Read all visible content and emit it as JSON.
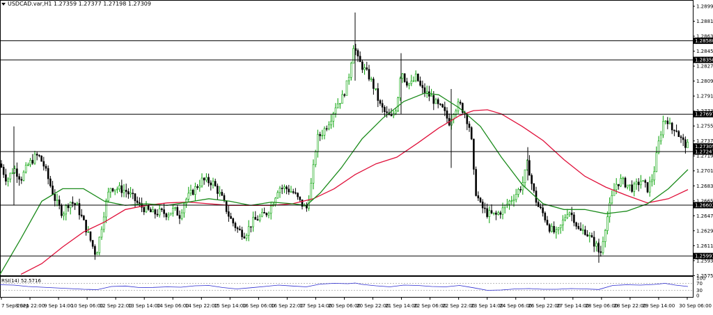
{
  "header": {
    "symbol": "USDCAD.var,H1",
    "open": "1.27359",
    "high": "1.27377",
    "low": "1.27198",
    "close": "1.27309"
  },
  "rsi": {
    "label": "RSI(14) 52.5716",
    "levels": [
      "100",
      "70",
      "30",
      "0"
    ]
  },
  "colors": {
    "up_candle": "#00a000",
    "down_candle": "#000000",
    "ma_fast": "#1a8a1a",
    "ma_slow": "#e0103a",
    "rsi_line": "#2a2ad0",
    "price_tag": "#000000"
  },
  "chart_data": {
    "type": "candlestick",
    "symbol": "USDCAD.var",
    "timeframe": "H1",
    "ylim": [
      1.2575,
      1.2902
    ],
    "price_ticks": [
      "1.28995",
      "1.28815",
      "1.28635",
      "1.28455",
      "1.28275",
      "1.28095",
      "1.27915",
      "1.27735",
      "1.27555",
      "1.27375",
      "1.27195",
      "1.27015",
      "1.26835",
      "1.26655",
      "1.26475",
      "1.26295",
      "1.26115",
      "1.25935",
      "1.25755"
    ],
    "horizontal_levels": [
      "1.28580",
      "1.28350",
      "1.27697",
      "1.27247",
      "1.26603",
      "1.25991"
    ],
    "current_price": "1.27309",
    "time_labels": [
      "7 Sep 2021",
      "8 Sep 22:00",
      "9 Sep 14:00",
      "10 Sep 06:00",
      "12 Sep 22:00",
      "13 Sep 14:00",
      "14 Sep 06:00",
      "14 Sep 22:00",
      "15 Sep 14:00",
      "16 Sep 06:00",
      "16 Sep 22:00",
      "17 Sep 14:00",
      "20 Sep 06:00",
      "20 Sep 22:00",
      "21 Sep 14:00",
      "22 Sep 06:00",
      "22 Sep 22:00",
      "23 Sep 14:00",
      "24 Sep 06:00",
      "26 Sep 22:00",
      "27 Sep 14:00",
      "28 Sep 06:00",
      "28 Sep 22:00",
      "29 Sep 14:00",
      "30 Sep 06:00"
    ],
    "close_path": [
      [
        0,
        1.271
      ],
      [
        10,
        1.269
      ],
      [
        20,
        1.2705
      ],
      [
        30,
        1.2692
      ],
      [
        40,
        1.2708
      ],
      [
        50,
        1.2718
      ],
      [
        55,
        1.272
      ],
      [
        62,
        1.271
      ],
      [
        70,
        1.269
      ],
      [
        80,
        1.2665
      ],
      [
        90,
        1.265
      ],
      [
        100,
        1.2665
      ],
      [
        110,
        1.266
      ],
      [
        120,
        1.264
      ],
      [
        130,
        1.2618
      ],
      [
        138,
        1.26
      ],
      [
        145,
        1.263
      ],
      [
        150,
        1.2655
      ],
      [
        158,
        1.2682
      ],
      [
        170,
        1.268
      ],
      [
        180,
        1.2678
      ],
      [
        190,
        1.267
      ],
      [
        200,
        1.266
      ],
      [
        210,
        1.2655
      ],
      [
        220,
        1.265
      ],
      [
        230,
        1.2652
      ],
      [
        240,
        1.265
      ],
      [
        250,
        1.2655
      ],
      [
        258,
        1.2648
      ],
      [
        265,
        1.2665
      ],
      [
        275,
        1.2675
      ],
      [
        290,
        1.269
      ],
      [
        305,
        1.2688
      ],
      [
        318,
        1.267
      ],
      [
        330,
        1.2645
      ],
      [
        342,
        1.263
      ],
      [
        352,
        1.2625
      ],
      [
        362,
        1.264
      ],
      [
        372,
        1.2645
      ],
      [
        382,
        1.265
      ],
      [
        390,
        1.266
      ],
      [
        400,
        1.2682
      ],
      [
        412,
        1.268
      ],
      [
        422,
        1.2675
      ],
      [
        430,
        1.2665
      ],
      [
        440,
        1.2655
      ],
      [
        448,
        1.269
      ],
      [
        455,
        1.274
      ],
      [
        465,
        1.275
      ],
      [
        475,
        1.2765
      ],
      [
        482,
        1.278
      ],
      [
        492,
        1.279
      ],
      [
        500,
        1.281
      ],
      [
        508,
        1.2855
      ],
      [
        514,
        1.2835
      ],
      [
        522,
        1.2825
      ],
      [
        530,
        1.2815
      ],
      [
        538,
        1.28
      ],
      [
        546,
        1.278
      ],
      [
        554,
        1.277
      ],
      [
        562,
        1.2765
      ],
      [
        570,
        1.278
      ],
      [
        576,
        1.2825
      ],
      [
        582,
        1.281
      ],
      [
        590,
        1.2805
      ],
      [
        598,
        1.2815
      ],
      [
        605,
        1.28
      ],
      [
        612,
        1.2795
      ],
      [
        620,
        1.279
      ],
      [
        628,
        1.278
      ],
      [
        636,
        1.2775
      ],
      [
        645,
        1.276
      ],
      [
        652,
        1.2775
      ],
      [
        660,
        1.2782
      ],
      [
        668,
        1.277
      ],
      [
        676,
        1.275
      ],
      [
        682,
        1.268
      ],
      [
        690,
        1.266
      ],
      [
        700,
        1.265
      ],
      [
        712,
        1.2648
      ],
      [
        722,
        1.2655
      ],
      [
        732,
        1.2665
      ],
      [
        742,
        1.2675
      ],
      [
        750,
        1.2685
      ],
      [
        758,
        1.2712
      ],
      [
        765,
        1.268
      ],
      [
        772,
        1.266
      ],
      [
        780,
        1.265
      ],
      [
        790,
        1.2632
      ],
      [
        800,
        1.2625
      ],
      [
        808,
        1.264
      ],
      [
        816,
        1.2655
      ],
      [
        824,
        1.2645
      ],
      [
        832,
        1.2628
      ],
      [
        840,
        1.263
      ],
      [
        848,
        1.262
      ],
      [
        856,
        1.2612
      ],
      [
        862,
        1.26
      ],
      [
        868,
        1.263
      ],
      [
        876,
        1.266
      ],
      [
        884,
        1.2685
      ],
      [
        892,
        1.269
      ],
      [
        900,
        1.2685
      ],
      [
        910,
        1.268
      ],
      [
        920,
        1.269
      ],
      [
        930,
        1.268
      ],
      [
        938,
        1.2695
      ],
      [
        946,
        1.2735
      ],
      [
        952,
        1.276
      ],
      [
        958,
        1.2765
      ],
      [
        964,
        1.275
      ],
      [
        970,
        1.2755
      ],
      [
        976,
        1.2742
      ],
      [
        982,
        1.2735
      ],
      [
        988,
        1.2731
      ]
    ],
    "wick_spikes": [
      [
        510,
        1.2892,
        1.281
      ],
      [
        576,
        1.2843,
        1.277
      ],
      [
        648,
        1.28,
        1.2705
      ],
      [
        20,
        1.2755,
        1.266
      ],
      [
        860,
        1.262,
        1.2591
      ],
      [
        758,
        1.273,
        1.269
      ]
    ],
    "ma_fast_path": [
      [
        0,
        1.2577
      ],
      [
        30,
        1.262
      ],
      [
        60,
        1.2665
      ],
      [
        90,
        1.268
      ],
      [
        120,
        1.268
      ],
      [
        150,
        1.2665
      ],
      [
        180,
        1.266
      ],
      [
        210,
        1.2662
      ],
      [
        240,
        1.266
      ],
      [
        270,
        1.2664
      ],
      [
        300,
        1.2668
      ],
      [
        330,
        1.2665
      ],
      [
        360,
        1.266
      ],
      [
        390,
        1.2664
      ],
      [
        420,
        1.2662
      ],
      [
        440,
        1.266
      ],
      [
        460,
        1.2675
      ],
      [
        490,
        1.2705
      ],
      [
        520,
        1.274
      ],
      [
        550,
        1.2765
      ],
      [
        580,
        1.2785
      ],
      [
        610,
        1.2795
      ],
      [
        630,
        1.2793
      ],
      [
        660,
        1.2777
      ],
      [
        690,
        1.2755
      ],
      [
        720,
        1.2718
      ],
      [
        750,
        1.2685
      ],
      [
        780,
        1.2662
      ],
      [
        810,
        1.2655
      ],
      [
        840,
        1.2655
      ],
      [
        870,
        1.265
      ],
      [
        900,
        1.2653
      ],
      [
        930,
        1.2662
      ],
      [
        960,
        1.268
      ],
      [
        988,
        1.2703
      ]
    ],
    "ma_slow_path": [
      [
        30,
        1.2577
      ],
      [
        60,
        1.259
      ],
      [
        90,
        1.261
      ],
      [
        120,
        1.2628
      ],
      [
        150,
        1.264
      ],
      [
        180,
        1.2655
      ],
      [
        210,
        1.266
      ],
      [
        240,
        1.2663
      ],
      [
        270,
        1.2664
      ],
      [
        300,
        1.2662
      ],
      [
        330,
        1.266
      ],
      [
        360,
        1.266
      ],
      [
        390,
        1.266
      ],
      [
        420,
        1.2662
      ],
      [
        450,
        1.2668
      ],
      [
        480,
        1.268
      ],
      [
        510,
        1.2697
      ],
      [
        540,
        1.271
      ],
      [
        570,
        1.2718
      ],
      [
        600,
        1.2735
      ],
      [
        630,
        1.2753
      ],
      [
        660,
        1.2768
      ],
      [
        680,
        1.2774
      ],
      [
        700,
        1.2775
      ],
      [
        720,
        1.277
      ],
      [
        750,
        1.2755
      ],
      [
        780,
        1.2738
      ],
      [
        810,
        1.2715
      ],
      [
        840,
        1.2695
      ],
      [
        870,
        1.2682
      ],
      [
        900,
        1.2672
      ],
      [
        930,
        1.2663
      ],
      [
        960,
        1.2668
      ],
      [
        988,
        1.2679
      ]
    ],
    "rsi_path": [
      [
        0,
        62
      ],
      [
        20,
        60
      ],
      [
        40,
        52
      ],
      [
        60,
        48
      ],
      [
        80,
        44
      ],
      [
        100,
        40
      ],
      [
        120,
        36
      ],
      [
        140,
        34
      ],
      [
        160,
        52
      ],
      [
        180,
        55
      ],
      [
        200,
        46
      ],
      [
        220,
        47
      ],
      [
        240,
        50
      ],
      [
        260,
        48
      ],
      [
        280,
        56
      ],
      [
        300,
        58
      ],
      [
        320,
        46
      ],
      [
        340,
        38
      ],
      [
        360,
        45
      ],
      [
        380,
        52
      ],
      [
        400,
        60
      ],
      [
        420,
        55
      ],
      [
        440,
        50
      ],
      [
        460,
        66
      ],
      [
        480,
        70
      ],
      [
        500,
        68
      ],
      [
        510,
        72
      ],
      [
        520,
        64
      ],
      [
        540,
        56
      ],
      [
        560,
        50
      ],
      [
        580,
        60
      ],
      [
        600,
        58
      ],
      [
        620,
        52
      ],
      [
        640,
        50
      ],
      [
        660,
        58
      ],
      [
        680,
        45
      ],
      [
        700,
        30
      ],
      [
        720,
        32
      ],
      [
        740,
        38
      ],
      [
        760,
        40
      ],
      [
        780,
        36
      ],
      [
        800,
        36
      ],
      [
        820,
        40
      ],
      [
        840,
        38
      ],
      [
        860,
        35
      ],
      [
        880,
        58
      ],
      [
        900,
        62
      ],
      [
        920,
        60
      ],
      [
        940,
        64
      ],
      [
        955,
        70
      ],
      [
        970,
        60
      ],
      [
        988,
        52
      ]
    ]
  }
}
